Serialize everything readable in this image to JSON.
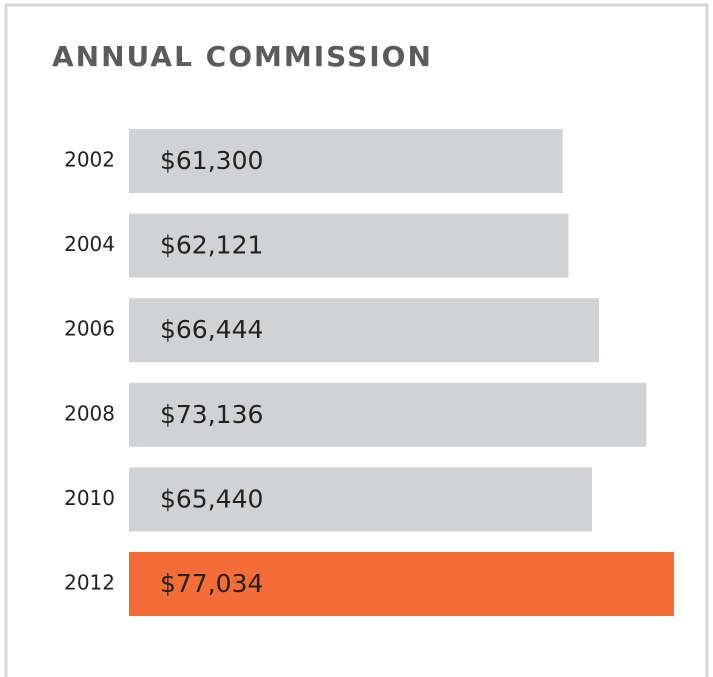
{
  "chart_data": {
    "type": "bar",
    "orientation": "horizontal",
    "title": "ANNUAL COMMISSION",
    "categories": [
      "2002",
      "2004",
      "2006",
      "2008",
      "2010",
      "2012"
    ],
    "values": [
      61300,
      62121,
      66444,
      73136,
      65440,
      77034
    ],
    "value_labels": [
      "$61,300",
      "$62,121",
      "$66,444",
      "$73,136",
      "$65,440",
      "$77,034"
    ],
    "colors": [
      "#d1d2d4",
      "#d1d2d4",
      "#d1d2d4",
      "#d1d2d4",
      "#d1d2d4",
      "#f26d38"
    ]
  }
}
